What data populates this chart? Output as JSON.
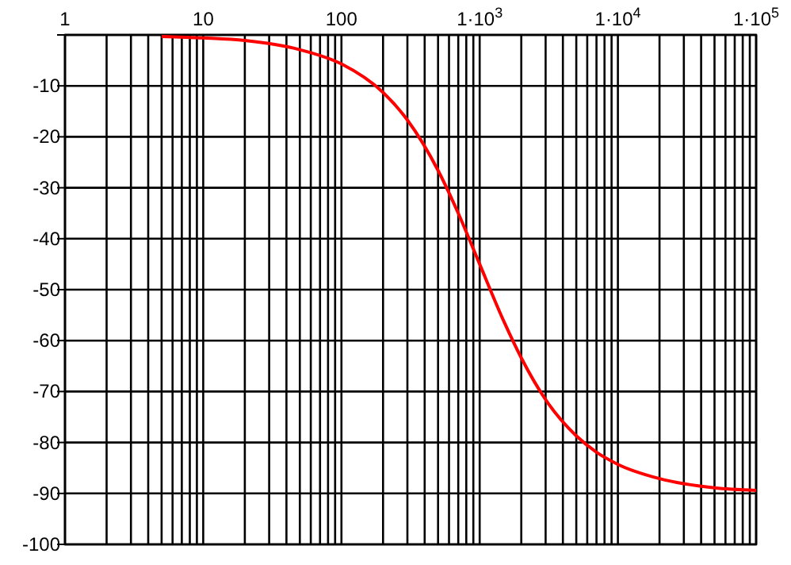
{
  "chart_data": {
    "type": "line",
    "log": "x",
    "grid": true,
    "xlim": [
      1,
      100000
    ],
    "ylim": [
      -100,
      0
    ],
    "xticks": [
      1,
      {
        "value": 2,
        "label": null
      },
      {
        "value": 3,
        "label": null
      },
      {
        "value": 4,
        "label": null
      },
      {
        "value": 5,
        "label": null
      },
      {
        "value": 6,
        "label": null
      },
      {
        "value": 7,
        "label": null
      },
      {
        "value": 8,
        "label": null
      },
      {
        "value": 9,
        "label": null
      },
      10,
      {
        "value": 20,
        "label": null
      },
      {
        "value": 30,
        "label": null
      },
      {
        "value": 40,
        "label": null
      },
      {
        "value": 50,
        "label": null
      },
      {
        "value": 60,
        "label": null
      },
      {
        "value": 70,
        "label": null
      },
      {
        "value": 80,
        "label": null
      },
      {
        "value": 90,
        "label": null
      },
      100,
      {
        "value": 200,
        "label": null
      },
      {
        "value": 300,
        "label": null
      },
      {
        "value": 400,
        "label": null
      },
      {
        "value": 500,
        "label": null
      },
      {
        "value": 600,
        "label": null
      },
      {
        "value": 700,
        "label": null
      },
      {
        "value": 800,
        "label": null
      },
      {
        "value": 900,
        "label": null
      },
      {
        "value": 1000,
        "label": "1·10$^{3}$"
      },
      {
        "value": 2000,
        "label": null
      },
      {
        "value": 3000,
        "label": null
      },
      {
        "value": 4000,
        "label": null
      },
      {
        "value": 5000,
        "label": null
      },
      {
        "value": 6000,
        "label": null
      },
      {
        "value": 7000,
        "label": null
      },
      {
        "value": 8000,
        "label": null
      },
      {
        "value": 9000,
        "label": null
      },
      {
        "value": 10000,
        "label": "1·10$^{4}$"
      },
      {
        "value": 20000,
        "label": null
      },
      {
        "value": 30000,
        "label": null
      },
      {
        "value": 40000,
        "label": null
      },
      {
        "value": 50000,
        "label": null
      },
      {
        "value": 60000,
        "label": null
      },
      {
        "value": 70000,
        "label": null
      },
      {
        "value": 80000,
        "label": null
      },
      {
        "value": 90000,
        "label": null
      },
      {
        "value": 100000,
        "label": "1·10$^{5}$"
      }
    ],
    "yticks": [
      {
        "value": 0,
        "label": null
      },
      -10,
      -20,
      -30,
      -40,
      -50,
      -60,
      -70,
      -80,
      -90,
      -100
    ],
    "series": [
      {
        "color": "#ff0000",
        "x": [
          5,
          10,
          20,
          50,
          100,
          200,
          300,
          500,
          700,
          1000,
          1500,
          2000,
          3000,
          5000,
          7000,
          10000,
          20000,
          50000,
          100000
        ],
        "values": [
          -0.3,
          -0.6,
          -1.1,
          -2.9,
          -5.7,
          -11.3,
          -16.7,
          -26.6,
          -35,
          -45,
          -56.3,
          -63.4,
          -71.6,
          -78.7,
          -81.9,
          -84.3,
          -87.1,
          -88.9,
          -89.4
        ]
      }
    ]
  }
}
